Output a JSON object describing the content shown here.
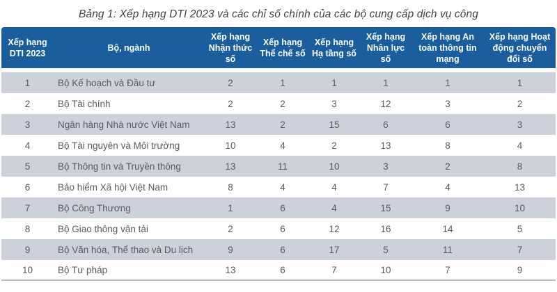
{
  "caption": "Bảng 1: Xếp hạng DTI 2023 và các chỉ số chính của các bộ cung cấp dịch vụ công",
  "colors": {
    "header_bg": "#1A5E9E",
    "header_text": "#FFFFFF",
    "stripe_bg": "#CDD2DA",
    "row_bg": "#FFFFFF",
    "body_text": "#595A5C",
    "bottom_rule": "#B7BCC4"
  },
  "chart_data": {
    "type": "table",
    "title": "Bảng 1: Xếp hạng DTI 2023 và các chỉ số chính của các bộ cung cấp dịch vụ công",
    "columns": [
      "Xếp hạng DTI 2023",
      "Bộ, ngành",
      "Xếp hạng Nhận thức số",
      "Xếp hạng Thể chế số",
      "Xếp hạng Hạ tầng số",
      "Xếp hạng Nhân lực số",
      "Xếp hạng An toàn thông tin mạng",
      "Xếp hạng Hoạt động chuyển đổi số"
    ],
    "rows": [
      [
        "1",
        "Bộ Kế hoạch và Đầu tư",
        "2",
        "1",
        "1",
        "1",
        "1",
        "1"
      ],
      [
        "2",
        "Bộ Tài chính",
        "2",
        "2",
        "3",
        "12",
        "3",
        "2"
      ],
      [
        "3",
        "Ngân hàng Nhà nước Việt Nam",
        "13",
        "2",
        "15",
        "6",
        "6",
        "3"
      ],
      [
        "4",
        "Bộ Tài nguyên và Môi trường",
        "10",
        "4",
        "2",
        "13",
        "8",
        "4"
      ],
      [
        "5",
        "Bộ Thông tin và Truyền thông",
        "13",
        "11",
        "10",
        "3",
        "2",
        "8"
      ],
      [
        "6",
        "Bảo hiểm Xã hội Việt Nam",
        "8",
        "4",
        "4",
        "7",
        "4",
        "13"
      ],
      [
        "7",
        "Bộ Công Thương",
        "1",
        "6",
        "4",
        "15",
        "9",
        "10"
      ],
      [
        "8",
        "Bộ Giao thông vận tải",
        "2",
        "6",
        "12",
        "16",
        "14",
        "5"
      ],
      [
        "9",
        "Bộ Văn hóa, Thể thao và Du lịch",
        "9",
        "6",
        "17",
        "5",
        "11",
        "7"
      ],
      [
        "10",
        "Bộ Tư pháp",
        "13",
        "6",
        "7",
        "10",
        "7",
        "9"
      ]
    ]
  }
}
